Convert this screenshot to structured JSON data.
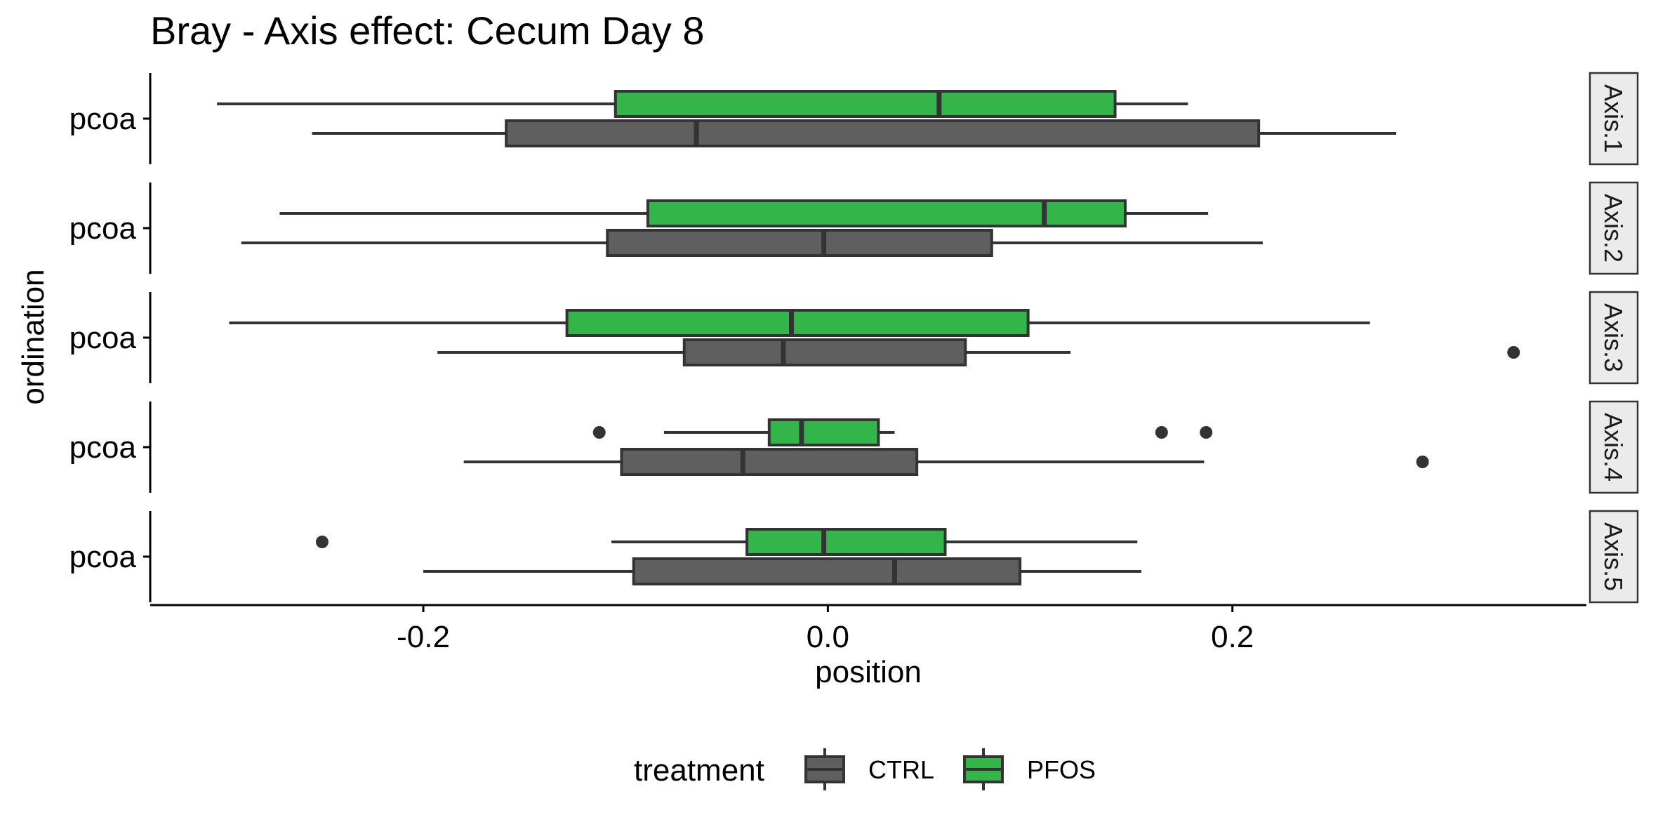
{
  "chart_data": {
    "type": "boxplot",
    "title": "Bray - Axis effect: Cecum Day 8",
    "xlabel": "position",
    "ylabel": "ordination",
    "xlim": [
      -0.335,
      0.375
    ],
    "xticks": [
      -0.2,
      0.0,
      0.2
    ],
    "xtick_labels": [
      "-0.2",
      "0.0",
      "0.2"
    ],
    "legend": {
      "title": "treatment",
      "position": "bottom",
      "entries": [
        {
          "name": "CTRL",
          "color": "#5f5f5f"
        },
        {
          "name": "PFOS",
          "color": "#33b54a"
        }
      ]
    },
    "facets": [
      {
        "strip": "Axis.1",
        "category": "pcoa",
        "boxes": [
          {
            "group": "PFOS",
            "whisker_low": -0.302,
            "q1": -0.105,
            "median": 0.055,
            "q3": 0.142,
            "whisker_high": 0.178,
            "outliers": []
          },
          {
            "group": "CTRL",
            "whisker_low": -0.255,
            "q1": -0.159,
            "median": -0.065,
            "q3": 0.213,
            "whisker_high": 0.281,
            "outliers": []
          }
        ]
      },
      {
        "strip": "Axis.2",
        "category": "pcoa",
        "boxes": [
          {
            "group": "PFOS",
            "whisker_low": -0.271,
            "q1": -0.089,
            "median": 0.107,
            "q3": 0.147,
            "whisker_high": 0.188,
            "outliers": []
          },
          {
            "group": "CTRL",
            "whisker_low": -0.29,
            "q1": -0.109,
            "median": -0.002,
            "q3": 0.081,
            "whisker_high": 0.215,
            "outliers": []
          }
        ]
      },
      {
        "strip": "Axis.3",
        "category": "pcoa",
        "boxes": [
          {
            "group": "PFOS",
            "whisker_low": -0.296,
            "q1": -0.129,
            "median": -0.018,
            "q3": 0.099,
            "whisker_high": 0.268,
            "outliers": []
          },
          {
            "group": "CTRL",
            "whisker_low": -0.193,
            "q1": -0.071,
            "median": -0.022,
            "q3": 0.068,
            "whisker_high": 0.12,
            "outliers": [
              0.339
            ]
          }
        ]
      },
      {
        "strip": "Axis.4",
        "category": "pcoa",
        "boxes": [
          {
            "group": "PFOS",
            "whisker_low": -0.081,
            "q1": -0.029,
            "median": -0.013,
            "q3": 0.025,
            "whisker_high": 0.033,
            "outliers": [
              -0.113,
              0.165,
              0.187
            ]
          },
          {
            "group": "CTRL",
            "whisker_low": -0.18,
            "q1": -0.102,
            "median": -0.042,
            "q3": 0.044,
            "whisker_high": 0.186,
            "outliers": [
              0.294
            ]
          }
        ]
      },
      {
        "strip": "Axis.5",
        "category": "pcoa",
        "boxes": [
          {
            "group": "PFOS",
            "whisker_low": -0.107,
            "q1": -0.04,
            "median": -0.002,
            "q3": 0.058,
            "whisker_high": 0.153,
            "outliers": [
              -0.25
            ]
          },
          {
            "group": "CTRL",
            "whisker_low": -0.2,
            "q1": -0.096,
            "median": 0.033,
            "q3": 0.095,
            "whisker_high": 0.155,
            "outliers": []
          }
        ]
      }
    ],
    "colors": {
      "CTRL": "#5f5f5f",
      "PFOS": "#33b54a",
      "outline": "#333333",
      "strip_fill": "#ebebeb"
    }
  }
}
